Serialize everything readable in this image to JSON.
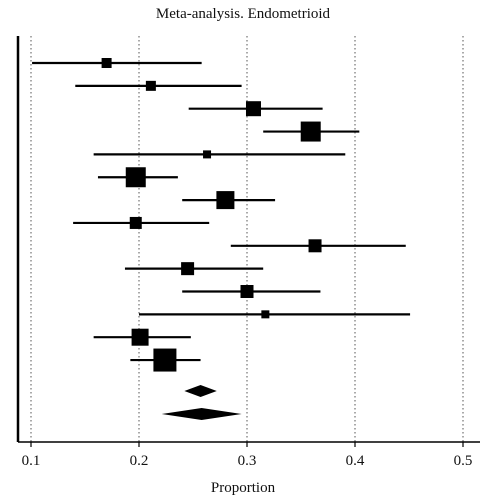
{
  "chart_data": {
    "type": "forest",
    "title": "Meta-analysis. Endometrioid",
    "xlabel": "Proportion",
    "ylabel": "",
    "xlim": [
      0.1,
      0.5
    ],
    "xticks": [
      0.1,
      0.2,
      0.3,
      0.4,
      0.5
    ],
    "xtick_labels": [
      "0.1",
      "0.2",
      "0.3",
      "0.4",
      "0.5"
    ],
    "grid": "vertical dotted",
    "legend": "none",
    "studies": [
      {
        "estimate": 0.17,
        "lower": 0.101,
        "upper": 0.258,
        "weight": 1.0
      },
      {
        "estimate": 0.211,
        "lower": 0.141,
        "upper": 0.295,
        "weight": 1.0
      },
      {
        "estimate": 0.306,
        "lower": 0.246,
        "upper": 0.37,
        "weight": 1.5
      },
      {
        "estimate": 0.359,
        "lower": 0.315,
        "upper": 0.404,
        "weight": 2.0
      },
      {
        "estimate": 0.263,
        "lower": 0.158,
        "upper": 0.391,
        "weight": 0.8
      },
      {
        "estimate": 0.197,
        "lower": 0.162,
        "upper": 0.236,
        "weight": 2.0
      },
      {
        "estimate": 0.28,
        "lower": 0.24,
        "upper": 0.326,
        "weight": 1.8
      },
      {
        "estimate": 0.197,
        "lower": 0.139,
        "upper": 0.265,
        "weight": 1.2
      },
      {
        "estimate": 0.363,
        "lower": 0.285,
        "upper": 0.447,
        "weight": 1.3
      },
      {
        "estimate": 0.245,
        "lower": 0.187,
        "upper": 0.315,
        "weight": 1.3
      },
      {
        "estimate": 0.3,
        "lower": 0.24,
        "upper": 0.368,
        "weight": 1.3
      },
      {
        "estimate": 0.317,
        "lower": 0.2,
        "upper": 0.451,
        "weight": 0.8
      },
      {
        "estimate": 0.201,
        "lower": 0.158,
        "upper": 0.248,
        "weight": 1.7
      },
      {
        "estimate": 0.224,
        "lower": 0.192,
        "upper": 0.257,
        "weight": 2.3
      }
    ],
    "pooled": [
      {
        "estimate": 0.257,
        "lower": 0.242,
        "upper": 0.272
      },
      {
        "estimate": 0.258,
        "lower": 0.221,
        "upper": 0.295
      }
    ]
  }
}
